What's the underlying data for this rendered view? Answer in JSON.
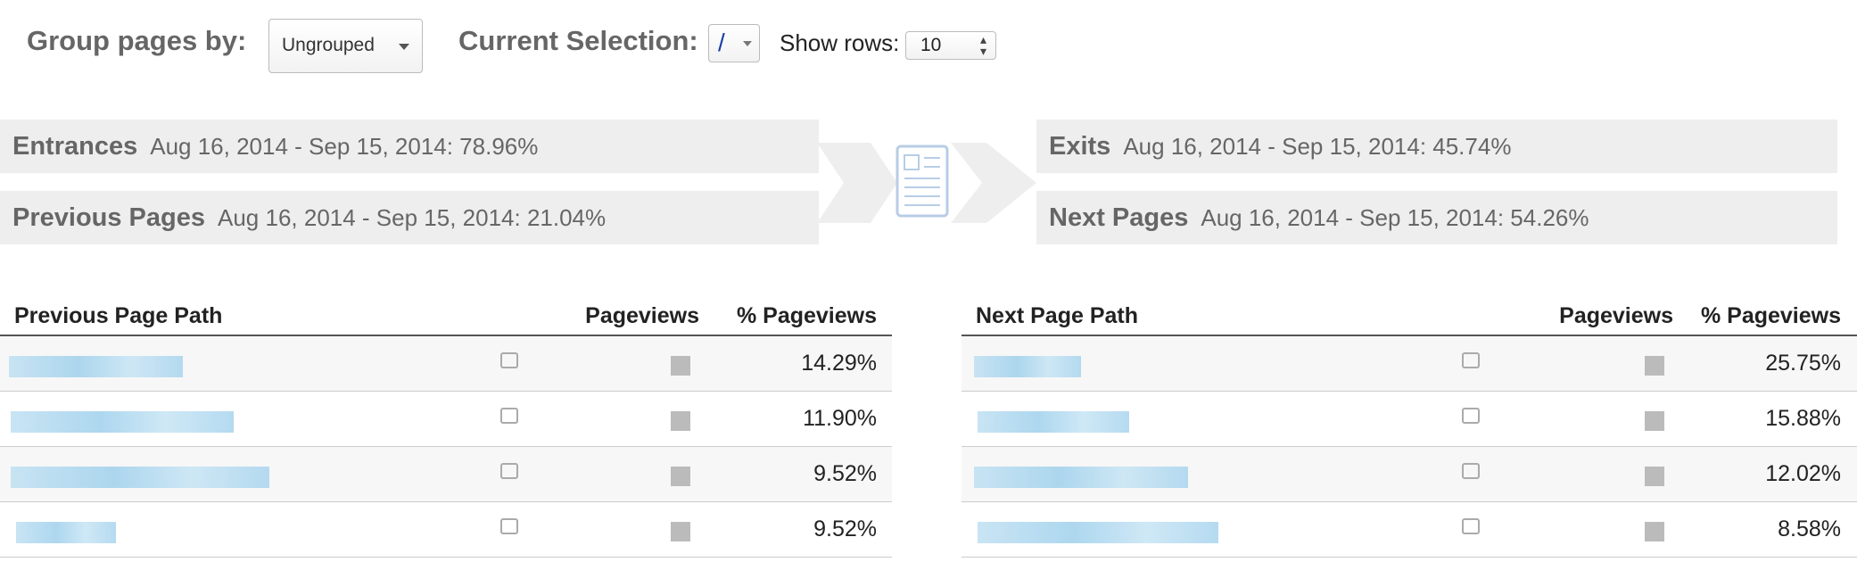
{
  "controls": {
    "group_label": "Group pages by:",
    "group_value": "Ungrouped",
    "selection_label": "Current Selection:",
    "selection_value": "/",
    "rows_label": "Show rows:",
    "rows_value": "10"
  },
  "flow": {
    "entrances": {
      "label": "Entrances",
      "detail": "Aug 16, 2014 - Sep 15, 2014: 78.96%"
    },
    "previous": {
      "label": "Previous Pages",
      "detail": "Aug 16, 2014 - Sep 15, 2014: 21.04%"
    },
    "exits": {
      "label": "Exits",
      "detail": "Aug 16, 2014 - Sep 15, 2014: 45.74%"
    },
    "next": {
      "label": "Next Pages",
      "detail": "Aug 16, 2014 - Sep 15, 2014: 54.26%"
    }
  },
  "tables": [
    {
      "header": [
        "Previous Page Path",
        "Pageviews",
        "% Pageviews"
      ],
      "rows": [
        "14.29%",
        "11.90%",
        "9.52%",
        "9.52%"
      ]
    },
    {
      "header": [
        "Next Page Path",
        "Pageviews",
        "% Pageviews"
      ],
      "rows": [
        "25.75%",
        "15.88%",
        "12.02%",
        "8.58%"
      ]
    }
  ]
}
